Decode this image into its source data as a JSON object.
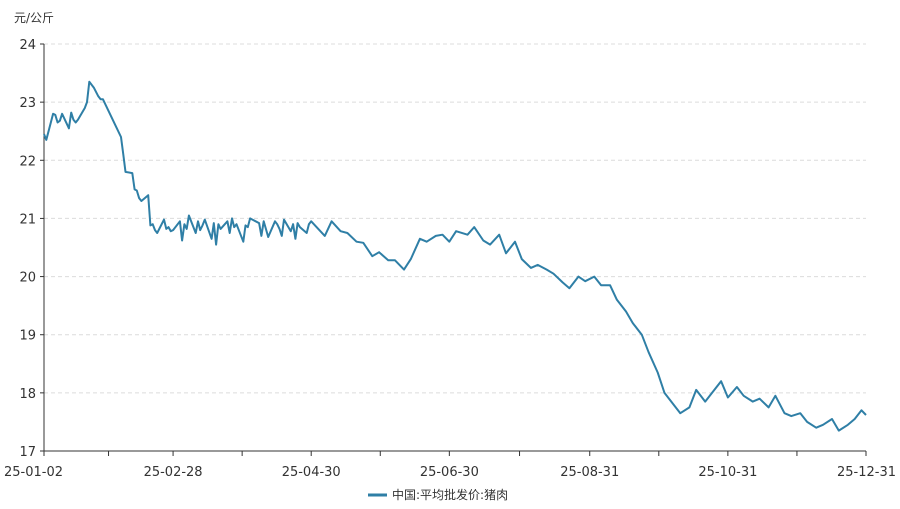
{
  "chart_data": {
    "type": "line",
    "y_unit": "元/公斤",
    "ylim": [
      17,
      24
    ],
    "y_ticks": [
      17,
      18,
      19,
      20,
      21,
      22,
      23,
      24
    ],
    "x_start": "2025-01-02",
    "x_end": "2025-12-31",
    "x_tick_labels": [
      "25-01-02",
      "25-02-28",
      "25-04-30",
      "25-06-30",
      "25-08-31",
      "25-10-31",
      "25-12-31"
    ],
    "x_tick_dates": [
      "2025-01-02",
      "2025-02-28",
      "2025-04-30",
      "2025-06-30",
      "2025-08-31",
      "2025-10-31",
      "2025-12-31"
    ],
    "grid": "horizontal dashed",
    "legend_position": "bottom-center",
    "colors": {
      "line": "#2f7fa6",
      "grid": "#dcdcdc",
      "axis": "#333333"
    },
    "series": [
      {
        "name": "中国:平均批发价:猪肉",
        "x": [
          "2025-01-02",
          "2025-01-03",
          "2025-01-06",
          "2025-01-07",
          "2025-01-08",
          "2025-01-09",
          "2025-01-10",
          "2025-01-13",
          "2025-01-14",
          "2025-01-15",
          "2025-01-16",
          "2025-01-17",
          "2025-01-20",
          "2025-01-21",
          "2025-01-22",
          "2025-01-23",
          "2025-01-24",
          "2025-01-26",
          "2025-01-27",
          "2025-01-28",
          "2025-02-05",
          "2025-02-06",
          "2025-02-07",
          "2025-02-10",
          "2025-02-11",
          "2025-02-12",
          "2025-02-13",
          "2025-02-14",
          "2025-02-17",
          "2025-02-18",
          "2025-02-19",
          "2025-02-20",
          "2025-02-21",
          "2025-02-24",
          "2025-02-25",
          "2025-02-26",
          "2025-02-27",
          "2025-02-28",
          "2025-03-03",
          "2025-03-04",
          "2025-03-05",
          "2025-03-06",
          "2025-03-07",
          "2025-03-10",
          "2025-03-11",
          "2025-03-12",
          "2025-03-13",
          "2025-03-14",
          "2025-03-17",
          "2025-03-18",
          "2025-03-19",
          "2025-03-20",
          "2025-03-21",
          "2025-03-24",
          "2025-03-25",
          "2025-03-26",
          "2025-03-27",
          "2025-03-28",
          "2025-03-31",
          "2025-04-01",
          "2025-04-02",
          "2025-04-03",
          "2025-04-07",
          "2025-04-08",
          "2025-04-09",
          "2025-04-10",
          "2025-04-11",
          "2025-04-14",
          "2025-04-15",
          "2025-04-16",
          "2025-04-17",
          "2025-04-18",
          "2025-04-21",
          "2025-04-22",
          "2025-04-23",
          "2025-04-24",
          "2025-04-25",
          "2025-04-28",
          "2025-04-29",
          "2025-04-30",
          "2025-05-06",
          "2025-05-09",
          "2025-05-13",
          "2025-05-16",
          "2025-05-20",
          "2025-05-23",
          "2025-05-27",
          "2025-05-30",
          "2025-06-03",
          "2025-06-06",
          "2025-06-10",
          "2025-06-13",
          "2025-06-17",
          "2025-06-20",
          "2025-06-24",
          "2025-06-27",
          "2025-06-30",
          "2025-07-03",
          "2025-07-08",
          "2025-07-11",
          "2025-07-15",
          "2025-07-18",
          "2025-07-22",
          "2025-07-25",
          "2025-07-29",
          "2025-08-01",
          "2025-08-05",
          "2025-08-08",
          "2025-08-12",
          "2025-08-15",
          "2025-08-19",
          "2025-08-22",
          "2025-08-26",
          "2025-08-29",
          "2025-09-02",
          "2025-09-05",
          "2025-09-09",
          "2025-09-12",
          "2025-09-16",
          "2025-09-19",
          "2025-09-23",
          "2025-09-26",
          "2025-09-30",
          "2025-10-03",
          "2025-10-07",
          "2025-10-10",
          "2025-10-14",
          "2025-10-17",
          "2025-10-21",
          "2025-10-24",
          "2025-10-28",
          "2025-10-31",
          "2025-11-04",
          "2025-11-07",
          "2025-11-11",
          "2025-11-14",
          "2025-11-18",
          "2025-11-21",
          "2025-11-25",
          "2025-11-28",
          "2025-12-02",
          "2025-12-05",
          "2025-12-09",
          "2025-12-12",
          "2025-12-16",
          "2025-12-19",
          "2025-12-23",
          "2025-12-26",
          "2025-12-29",
          "2025-12-31"
        ],
        "values": [
          22.45,
          22.35,
          22.8,
          22.78,
          22.65,
          22.68,
          22.8,
          22.55,
          22.82,
          22.7,
          22.65,
          22.7,
          22.9,
          23.0,
          23.35,
          23.3,
          23.25,
          23.1,
          23.05,
          23.05,
          22.4,
          22.1,
          21.8,
          21.78,
          21.5,
          21.48,
          21.35,
          21.3,
          21.4,
          20.88,
          20.9,
          20.8,
          20.75,
          20.98,
          20.82,
          20.85,
          20.78,
          20.8,
          20.95,
          20.62,
          20.9,
          20.82,
          21.05,
          20.75,
          20.95,
          20.8,
          20.88,
          20.98,
          20.65,
          20.92,
          20.55,
          20.9,
          20.82,
          20.95,
          20.75,
          21.0,
          20.85,
          20.9,
          20.6,
          20.88,
          20.85,
          21.0,
          20.92,
          20.7,
          20.95,
          20.82,
          20.68,
          20.95,
          20.9,
          20.82,
          20.7,
          20.98,
          20.78,
          20.9,
          20.65,
          20.92,
          20.85,
          20.75,
          20.9,
          20.95,
          20.7,
          20.95,
          20.78,
          20.75,
          20.6,
          20.58,
          20.35,
          20.42,
          20.28,
          20.28,
          20.12,
          20.3,
          20.65,
          20.6,
          20.7,
          20.72,
          20.6,
          20.78,
          20.72,
          20.85,
          20.62,
          20.55,
          20.72,
          20.4,
          20.6,
          20.3,
          20.15,
          20.2,
          20.12,
          20.05,
          19.9,
          19.8,
          20.0,
          19.92,
          20.0,
          19.85,
          19.85,
          19.6,
          19.4,
          19.2,
          19.0,
          18.7,
          18.35,
          18.0,
          17.8,
          17.65,
          17.75,
          18.05,
          17.85,
          18.0,
          18.2,
          17.92,
          18.1,
          17.95,
          17.85,
          17.9,
          17.75,
          17.95,
          17.65,
          17.6,
          17.65,
          17.5,
          17.4,
          17.45,
          17.55,
          17.35,
          17.45,
          17.55,
          17.7,
          17.62
        ]
      }
    ]
  }
}
